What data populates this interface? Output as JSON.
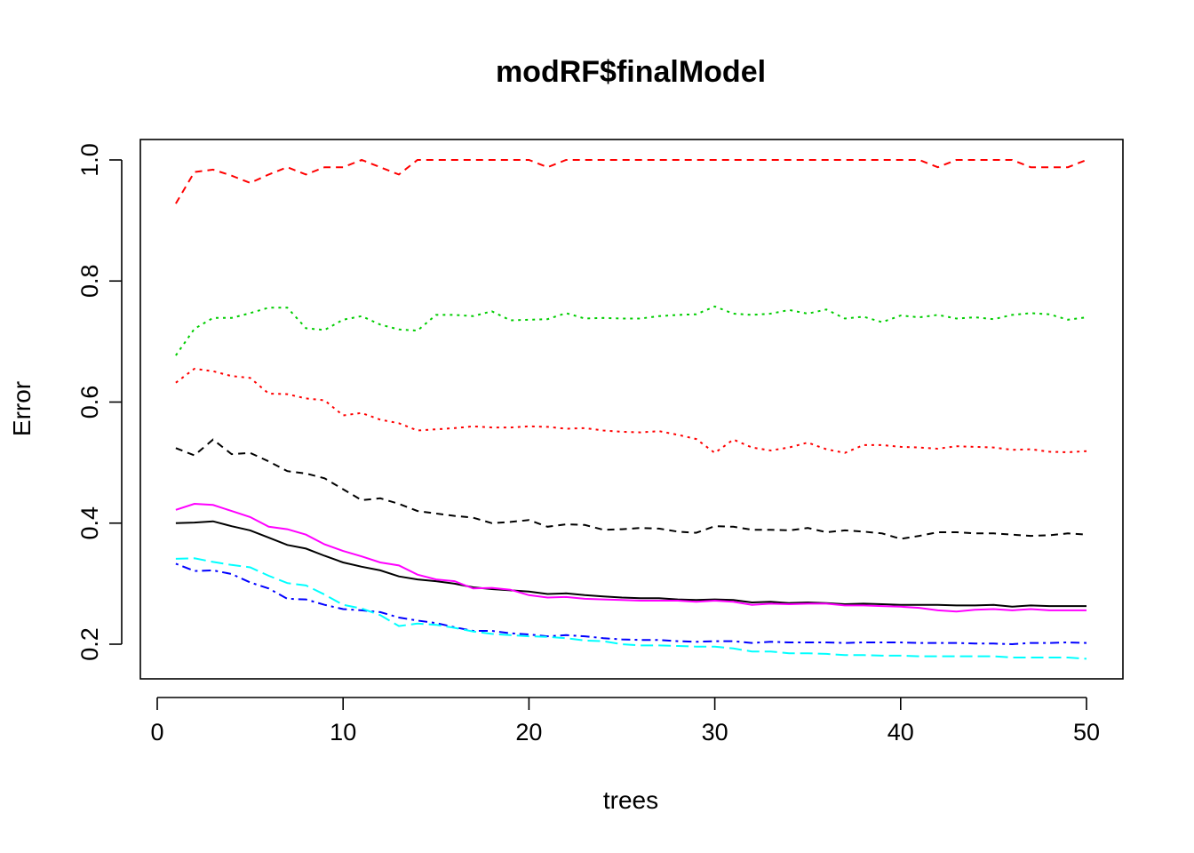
{
  "chart_data": {
    "type": "line",
    "title": "modRF$finalModel",
    "xlabel": "trees",
    "ylabel": "Error",
    "xlim": [
      0,
      50
    ],
    "ylim": [
      0.16,
      1.0
    ],
    "xticks": [
      "0",
      "10",
      "20",
      "30",
      "40",
      "50"
    ],
    "yticks": [
      "0.2",
      "0.4",
      "0.6",
      "0.8",
      "1.0"
    ],
    "grid": false,
    "legend": "none",
    "x": [
      1,
      2,
      3,
      4,
      5,
      6,
      7,
      8,
      9,
      10,
      11,
      12,
      13,
      14,
      15,
      16,
      17,
      18,
      19,
      20,
      21,
      22,
      23,
      24,
      25,
      26,
      27,
      28,
      29,
      30,
      31,
      32,
      33,
      34,
      35,
      36,
      37,
      38,
      39,
      40,
      41,
      42,
      43,
      44,
      45,
      46,
      47,
      48,
      49,
      50
    ],
    "series": [
      {
        "color": "#000000",
        "dash": "solid",
        "values": [
          0.4,
          0.401,
          0.403,
          0.395,
          0.388,
          0.376,
          0.364,
          0.358,
          0.346,
          0.335,
          0.328,
          0.322,
          0.312,
          0.307,
          0.304,
          0.3,
          0.294,
          0.291,
          0.289,
          0.287,
          0.283,
          0.284,
          0.281,
          0.279,
          0.277,
          0.276,
          0.276,
          0.274,
          0.273,
          0.274,
          0.273,
          0.269,
          0.27,
          0.268,
          0.269,
          0.268,
          0.266,
          0.267,
          0.266,
          0.265,
          0.265,
          0.265,
          0.264,
          0.264,
          0.265,
          0.262,
          0.264,
          0.263,
          0.263,
          0.263
        ]
      },
      {
        "color": "#ff0000",
        "dash": "dotted",
        "values": [
          0.632,
          0.655,
          0.651,
          0.643,
          0.64,
          0.614,
          0.613,
          0.606,
          0.603,
          0.578,
          0.582,
          0.571,
          0.565,
          0.553,
          0.555,
          0.557,
          0.56,
          0.558,
          0.558,
          0.56,
          0.559,
          0.556,
          0.557,
          0.553,
          0.551,
          0.55,
          0.552,
          0.546,
          0.539,
          0.516,
          0.538,
          0.525,
          0.52,
          0.525,
          0.533,
          0.522,
          0.516,
          0.529,
          0.529,
          0.526,
          0.525,
          0.523,
          0.527,
          0.526,
          0.525,
          0.521,
          0.522,
          0.518,
          0.517,
          0.519
        ]
      },
      {
        "color": "#00cd00",
        "dash": "dotted",
        "values": [
          0.677,
          0.721,
          0.739,
          0.739,
          0.747,
          0.756,
          0.756,
          0.722,
          0.719,
          0.736,
          0.742,
          0.728,
          0.72,
          0.718,
          0.744,
          0.744,
          0.742,
          0.75,
          0.735,
          0.736,
          0.737,
          0.747,
          0.738,
          0.739,
          0.738,
          0.738,
          0.742,
          0.744,
          0.745,
          0.758,
          0.746,
          0.744,
          0.746,
          0.752,
          0.746,
          0.753,
          0.738,
          0.741,
          0.732,
          0.743,
          0.74,
          0.744,
          0.738,
          0.74,
          0.737,
          0.744,
          0.747,
          0.745,
          0.736,
          0.74
        ]
      },
      {
        "color": "#0000ff",
        "dash": "dashdot",
        "values": [
          0.333,
          0.321,
          0.322,
          0.316,
          0.302,
          0.292,
          0.275,
          0.274,
          0.265,
          0.258,
          0.256,
          0.253,
          0.244,
          0.239,
          0.235,
          0.228,
          0.222,
          0.222,
          0.218,
          0.216,
          0.213,
          0.215,
          0.213,
          0.21,
          0.208,
          0.207,
          0.207,
          0.205,
          0.204,
          0.205,
          0.205,
          0.202,
          0.204,
          0.203,
          0.203,
          0.203,
          0.202,
          0.203,
          0.203,
          0.203,
          0.202,
          0.202,
          0.202,
          0.201,
          0.201,
          0.2,
          0.202,
          0.202,
          0.203,
          0.202
        ]
      },
      {
        "color": "#00ffff",
        "dash": "longdash",
        "values": [
          0.341,
          0.342,
          0.336,
          0.331,
          0.327,
          0.313,
          0.301,
          0.297,
          0.282,
          0.265,
          0.259,
          0.248,
          0.23,
          0.234,
          0.232,
          0.227,
          0.221,
          0.217,
          0.215,
          0.213,
          0.212,
          0.21,
          0.206,
          0.205,
          0.2,
          0.198,
          0.198,
          0.197,
          0.196,
          0.196,
          0.193,
          0.188,
          0.188,
          0.185,
          0.185,
          0.184,
          0.182,
          0.182,
          0.181,
          0.181,
          0.18,
          0.18,
          0.18,
          0.18,
          0.18,
          0.178,
          0.178,
          0.178,
          0.178,
          0.176
        ]
      },
      {
        "color": "#ff00ff",
        "dash": "solid",
        "values": [
          0.422,
          0.432,
          0.43,
          0.42,
          0.41,
          0.394,
          0.39,
          0.381,
          0.365,
          0.354,
          0.345,
          0.335,
          0.33,
          0.315,
          0.307,
          0.304,
          0.292,
          0.293,
          0.29,
          0.281,
          0.277,
          0.278,
          0.275,
          0.274,
          0.273,
          0.272,
          0.272,
          0.272,
          0.27,
          0.272,
          0.27,
          0.265,
          0.267,
          0.266,
          0.267,
          0.267,
          0.264,
          0.264,
          0.263,
          0.262,
          0.26,
          0.256,
          0.254,
          0.257,
          0.258,
          0.256,
          0.258,
          0.256,
          0.256,
          0.256
        ]
      },
      {
        "color": "#000000",
        "dash": "dashed",
        "values": [
          0.524,
          0.512,
          0.538,
          0.514,
          0.516,
          0.502,
          0.486,
          0.482,
          0.474,
          0.456,
          0.438,
          0.441,
          0.432,
          0.42,
          0.416,
          0.412,
          0.409,
          0.4,
          0.402,
          0.405,
          0.394,
          0.398,
          0.397,
          0.389,
          0.39,
          0.392,
          0.391,
          0.386,
          0.384,
          0.395,
          0.394,
          0.389,
          0.389,
          0.388,
          0.392,
          0.385,
          0.388,
          0.386,
          0.383,
          0.374,
          0.379,
          0.385,
          0.385,
          0.383,
          0.383,
          0.381,
          0.379,
          0.38,
          0.383,
          0.381
        ]
      },
      {
        "color": "#ff0000",
        "dash": "dashed",
        "values": [
          0.928,
          0.98,
          0.984,
          0.974,
          0.962,
          0.976,
          0.988,
          0.976,
          0.988,
          0.988,
          1.0,
          0.988,
          0.976,
          1.0,
          1.0,
          1.0,
          1.0,
          1.0,
          1.0,
          1.0,
          0.988,
          1.0,
          1.0,
          1.0,
          1.0,
          1.0,
          1.0,
          1.0,
          1.0,
          1.0,
          1.0,
          1.0,
          1.0,
          1.0,
          1.0,
          1.0,
          1.0,
          1.0,
          1.0,
          1.0,
          1.0,
          0.988,
          1.0,
          1.0,
          1.0,
          1.0,
          0.988,
          0.988,
          0.988,
          1.0
        ]
      }
    ]
  }
}
